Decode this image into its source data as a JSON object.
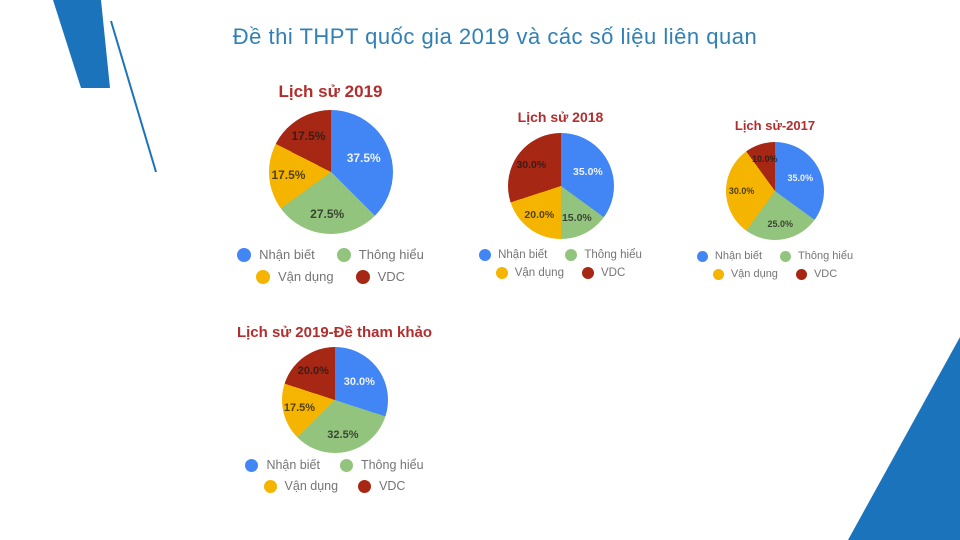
{
  "page": {
    "title": "Đề thi THPT quốc gia 2019 và các số liệu liên quan"
  },
  "colors": {
    "slice_colors": [
      "#4285F4",
      "#93C47D",
      "#F4B400",
      "#A52714"
    ],
    "chart_title_color": "#B22E2E",
    "page_title_color": "#3080B5",
    "decoration_blue": "#1B74BB",
    "legend_text_color": "#757575",
    "label_on_blue": "#EDF2FB",
    "label_on_light": "rgba(25,25,25,0.75)"
  },
  "legend_labels": [
    "Nhận biết",
    "Thông hiểu",
    "Vận dụng",
    "VDC"
  ],
  "chart_data": [
    {
      "type": "pie",
      "title": "Lịch sử 2019",
      "categories": [
        "Nhận biết",
        "Thông hiểu",
        "Vận dụng",
        "VDC"
      ],
      "values": [
        37.5,
        27.5,
        17.5,
        17.5
      ],
      "labels": [
        "37.5%",
        "27.5%",
        "17.5%",
        "17.5%"
      ],
      "legend_position": "bottom"
    },
    {
      "type": "pie",
      "title": "Lịch sử 2018",
      "categories": [
        "Nhận biết",
        "Thông hiểu",
        "Vận dụng",
        "VDC"
      ],
      "values": [
        35,
        15,
        20,
        30
      ],
      "labels": [
        "35.0%",
        "15.0%",
        "20.0%",
        "30.0%"
      ],
      "legend_position": "bottom"
    },
    {
      "type": "pie",
      "title": "Lịch sử-2017",
      "categories": [
        "Nhận biết",
        "Thông hiểu",
        "Vận dụng",
        "VDC"
      ],
      "values": [
        35,
        25,
        30,
        10
      ],
      "labels": [
        "35.0%",
        "25.0%",
        "30.0%",
        "10.0%"
      ],
      "legend_position": "bottom"
    },
    {
      "type": "pie",
      "title": "Lịch sử 2019-Đề tham khảo",
      "categories": [
        "Nhận biết",
        "Thông hiểu",
        "Vận dụng",
        "VDC"
      ],
      "values": [
        30,
        32.5,
        17.5,
        20
      ],
      "labels": [
        "30.0%",
        "32.5%",
        "17.5%",
        "20.0%"
      ],
      "legend_position": "bottom"
    }
  ]
}
